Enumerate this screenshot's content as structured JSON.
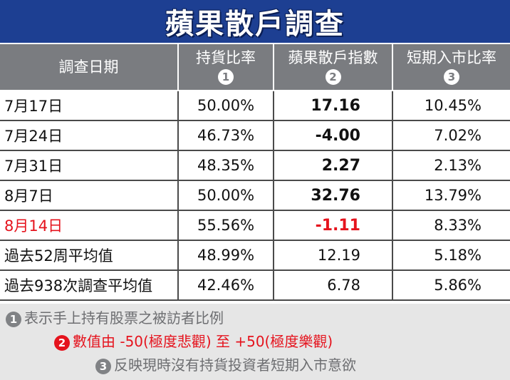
{
  "title": "蘋果散戶調查",
  "headers": {
    "date": "調查日期",
    "ratio": "持貨比率",
    "ratio_mark": "1",
    "index": "蘋果散戶指數",
    "index_mark": "2",
    "short": "短期入市比率",
    "short_mark": "3"
  },
  "rows": [
    {
      "date": "7月17日",
      "ratio": "50.00%",
      "index": "17.16",
      "short": "10.45%"
    },
    {
      "date": "7月24日",
      "ratio": "46.73%",
      "index": "-4.00",
      "short": "7.02%"
    },
    {
      "date": "7月31日",
      "ratio": "48.35%",
      "index": "2.27",
      "short": "2.13%"
    },
    {
      "date": "8月7日",
      "ratio": "50.00%",
      "index": "32.76",
      "short": "13.79%"
    },
    {
      "date": "8月14日",
      "ratio": "55.56%",
      "index": "-1.11",
      "short": "8.33%"
    }
  ],
  "summary": [
    {
      "date": "過去52周平均值",
      "ratio": "48.99%",
      "index": "12.19",
      "short": "5.18%"
    },
    {
      "date": "過去938次調查平均值",
      "ratio": "42.46%",
      "index": "6.78",
      "short": "5.86%"
    }
  ],
  "notes": [
    {
      "mark": "1",
      "text": "表示手上持有股票之被訪者比例"
    },
    {
      "mark": "2",
      "text": "數值由 -50(極度悲觀) 至 +50(極度樂觀)"
    },
    {
      "mark": "3",
      "text": "反映現時沒有持貨投資者短期入市意欲"
    }
  ],
  "colors": {
    "title_bg": "#1d3f92",
    "header_bg": "#7a7c80",
    "highlight": "#e5131d",
    "footnote_bg": "#e6e6e6"
  }
}
